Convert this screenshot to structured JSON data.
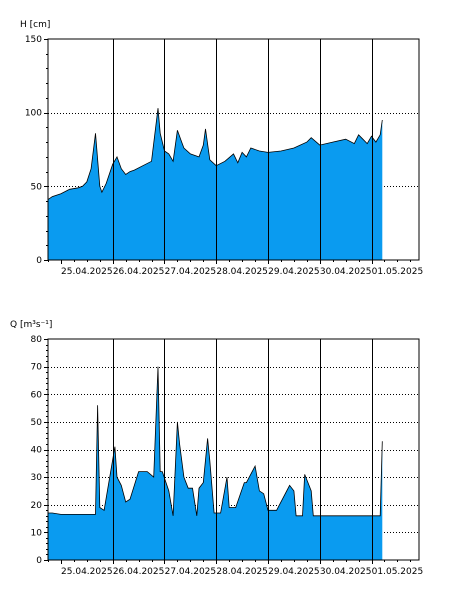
{
  "chart_data": [
    {
      "type": "area",
      "ylabel": "H [cm]",
      "ylim": [
        0,
        150
      ],
      "yticks": [
        0,
        50,
        100,
        150
      ],
      "xlim": [
        "2025-04-24T18:00",
        "2025-05-01T22:00"
      ],
      "xticks": [
        "25.04.2025",
        "26.04.2025",
        "27.04.2025",
        "28.04.2025",
        "29.04.2025",
        "30.04.2025",
        "01.05.2025"
      ],
      "grid": "horizontal dotted at 50 and 100, vertical solid at day boundaries",
      "fill_color": "#0a9bf0",
      "line_color": "#000000",
      "series": [
        {
          "x": [
            "2025-04-24T18:00",
            "2025-04-24T20:00",
            "2025-04-25T00:00",
            "2025-04-25T04:00",
            "2025-04-25T08:00",
            "2025-04-25T10:00",
            "2025-04-25T12:00",
            "2025-04-25T14:00",
            "2025-04-25T16:00",
            "2025-04-25T18:00",
            "2025-04-25T19:00",
            "2025-04-25T21:00",
            "2025-04-26T00:00",
            "2025-04-26T02:00",
            "2025-04-26T04:00",
            "2025-04-26T06:00",
            "2025-04-26T08:00",
            "2025-04-26T10:00",
            "2025-04-26T14:00",
            "2025-04-26T18:00",
            "2025-04-26T21:00",
            "2025-04-26T22:00",
            "2025-04-27T00:00",
            "2025-04-27T02:00",
            "2025-04-27T04:00",
            "2025-04-27T06:00",
            "2025-04-27T08:00",
            "2025-04-27T09:00",
            "2025-04-27T12:00",
            "2025-04-27T16:00",
            "2025-04-27T18:00",
            "2025-04-27T19:00",
            "2025-04-27T21:00",
            "2025-04-28T00:00",
            "2025-04-28T04:00",
            "2025-04-28T08:00",
            "2025-04-28T10:00",
            "2025-04-28T12:00",
            "2025-04-28T14:00",
            "2025-04-28T16:00",
            "2025-04-28T20:00",
            "2025-04-29T00:00",
            "2025-04-29T06:00",
            "2025-04-29T12:00",
            "2025-04-29T18:00",
            "2025-04-29T20:00",
            "2025-04-30T00:00",
            "2025-04-30T06:00",
            "2025-04-30T12:00",
            "2025-04-30T16:00",
            "2025-04-30T18:00",
            "2025-04-30T20:00",
            "2025-04-30T22:00",
            "2025-05-01T00:00",
            "2025-05-01T02:00",
            "2025-05-01T04:00",
            "2025-05-01T05:00"
          ],
          "y": [
            41,
            43,
            45,
            48,
            49,
            50,
            53,
            62,
            86,
            50,
            46,
            52,
            65,
            70,
            62,
            58,
            60,
            61,
            64,
            67,
            103,
            86,
            74,
            72,
            67,
            88,
            80,
            76,
            72,
            70,
            78,
            89,
            68,
            64,
            67,
            72,
            66,
            73,
            70,
            76,
            74,
            73,
            74,
            76,
            80,
            83,
            78,
            80,
            82,
            79,
            85,
            82,
            79,
            84,
            80,
            85,
            95
          ]
        }
      ]
    },
    {
      "type": "area",
      "ylabel": "Q [m³s⁻¹]",
      "ylim": [
        0,
        80
      ],
      "yticks": [
        0,
        10,
        20,
        30,
        40,
        50,
        60,
        70,
        80
      ],
      "xlim": [
        "2025-04-24T18:00",
        "2025-05-01T22:00"
      ],
      "xticks": [
        "25.04.2025",
        "26.04.2025",
        "27.04.2025",
        "28.04.2025",
        "29.04.2025",
        "30.04.2025",
        "01.05.2025"
      ],
      "grid": "horizontal dotted at every tick, vertical solid at day boundaries",
      "fill_color": "#0a9bf0",
      "line_color": "#000000",
      "series": [
        {
          "x": [
            "2025-04-24T18:00",
            "2025-04-24T20:00",
            "2025-04-25T00:00",
            "2025-04-25T08:00",
            "2025-04-25T14:00",
            "2025-04-25T16:00",
            "2025-04-25T17:00",
            "2025-04-25T18:00",
            "2025-04-25T20:00",
            "2025-04-26T01:00",
            "2025-04-26T02:00",
            "2025-04-26T04:00",
            "2025-04-26T06:00",
            "2025-04-26T08:00",
            "2025-04-26T12:00",
            "2025-04-26T16:00",
            "2025-04-26T19:00",
            "2025-04-26T21:00",
            "2025-04-26T22:00",
            "2025-04-26T23:00",
            "2025-04-27T02:00",
            "2025-04-27T04:00",
            "2025-04-27T06:00",
            "2025-04-27T07:00",
            "2025-04-27T09:00",
            "2025-04-27T11:00",
            "2025-04-27T13:00",
            "2025-04-27T15:00",
            "2025-04-27T16:00",
            "2025-04-27T18:00",
            "2025-04-27T20:00",
            "2025-04-27T21:00",
            "2025-04-27T23:00",
            "2025-04-28T02:00",
            "2025-04-28T05:00",
            "2025-04-28T06:00",
            "2025-04-28T08:00",
            "2025-04-28T09:00",
            "2025-04-28T13:00",
            "2025-04-28T14:00",
            "2025-04-28T18:00",
            "2025-04-28T20:00",
            "2025-04-28T22:00",
            "2025-04-29T00:00",
            "2025-04-29T02:00",
            "2025-04-29T04:00",
            "2025-04-29T10:00",
            "2025-04-29T12:00",
            "2025-04-29T13:00",
            "2025-04-29T16:00",
            "2025-04-29T17:00",
            "2025-04-29T20:00",
            "2025-04-29T21:00",
            "2025-04-29T23:00",
            "2025-04-30T00:00",
            "2025-04-30T02:00",
            "2025-04-30T12:00",
            "2025-04-30T18:00",
            "2025-05-01T00:00",
            "2025-05-01T04:00",
            "2025-05-01T05:00"
          ],
          "y": [
            17,
            17,
            16.5,
            16.5,
            16.5,
            16.5,
            56,
            19,
            18,
            41,
            30,
            27,
            21,
            22,
            32,
            32,
            30,
            70,
            32,
            32,
            25,
            16,
            50,
            42,
            30,
            26,
            26,
            16,
            26,
            28,
            44,
            36,
            17,
            17,
            30,
            19,
            19,
            19,
            28,
            28,
            34,
            25,
            24,
            18,
            18,
            18,
            27,
            25,
            16,
            16,
            31,
            25,
            16,
            16,
            16,
            16,
            16,
            16,
            16,
            16,
            43
          ]
        }
      ]
    }
  ]
}
